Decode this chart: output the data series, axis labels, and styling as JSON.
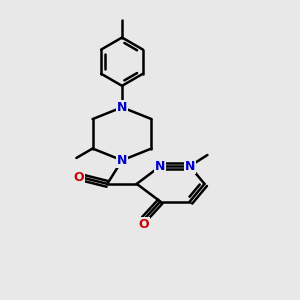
{
  "background_color": "#e8e8e8",
  "bond_color": "#000000",
  "N_color": "#0000cc",
  "O_color": "#cc0000",
  "line_width": 1.8,
  "figsize": [
    3.0,
    3.0
  ],
  "dpi": 100,
  "xlim": [
    0,
    10
  ],
  "ylim": [
    0,
    10
  ]
}
